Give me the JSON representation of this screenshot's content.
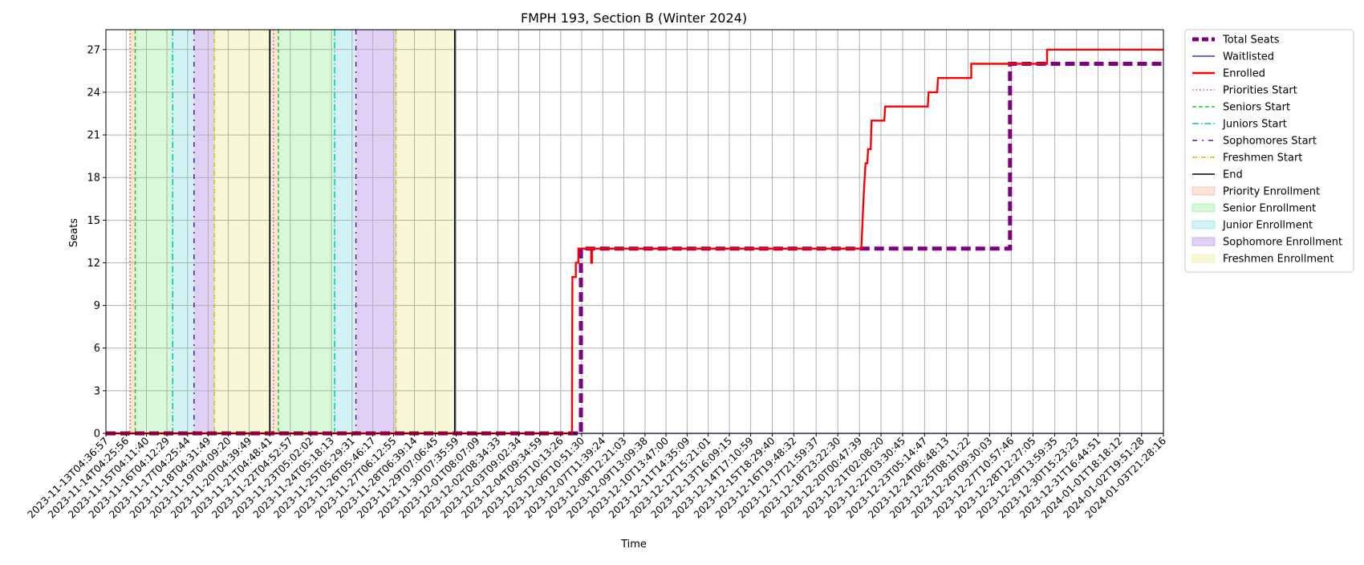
{
  "chart_data": {
    "type": "line",
    "title": "FMPH 193, Section B (Winter 2024)",
    "xlabel": "Time",
    "ylabel": "Seats",
    "ylim": [
      0,
      28.4
    ],
    "yticks": [
      0,
      3,
      6,
      9,
      12,
      15,
      18,
      21,
      24,
      27
    ],
    "x_range": [
      "2023-11-13T04:36:57",
      "2024-01-03T21:28:16"
    ],
    "xtick_labels": [
      "2023-11-13T04:36:57",
      "2023-11-14T04:25:56",
      "2023-11-15T04:11:40",
      "2023-11-16T04:12:29",
      "2023-11-17T04:25:44",
      "2023-11-18T04:31:49",
      "2023-11-19T04:09:20",
      "2023-11-20T04:39:49",
      "2023-11-21T04:48:41",
      "2023-11-22T04:52:57",
      "2023-11-23T05:02:02",
      "2023-11-24T05:18:13",
      "2023-11-25T05:29:31",
      "2023-11-26T05:46:17",
      "2023-11-27T06:12:55",
      "2023-11-28T06:39:14",
      "2023-11-29T07:06:45",
      "2023-11-30T07:35:59",
      "2023-12-01T08:07:09",
      "2023-12-02T08:34:33",
      "2023-12-03T09:02:34",
      "2023-12-04T09:34:59",
      "2023-12-05T10:13:26",
      "2023-12-06T10:51:30",
      "2023-12-07T11:39:24",
      "2023-12-08T12:21:03",
      "2023-12-09T13:09:38",
      "2023-12-10T13:47:00",
      "2023-12-11T14:35:09",
      "2023-12-12T15:21:01",
      "2023-12-13T16:09:15",
      "2023-12-14T17:10:59",
      "2023-12-15T18:29:40",
      "2023-12-16T19:48:32",
      "2023-12-17T21:59:37",
      "2023-12-18T23:22:30",
      "2023-12-20T00:47:39",
      "2023-12-21T02:08:20",
      "2023-12-22T03:30:45",
      "2023-12-23T05:14:47",
      "2023-12-24T06:48:13",
      "2023-12-25T08:11:22",
      "2023-12-26T09:30:03",
      "2023-12-27T10:57:46",
      "2023-12-28T12:27:05",
      "2023-12-29T13:59:35",
      "2023-12-30T15:23:23",
      "2023-12-31T16:44:51",
      "2024-01-01T18:18:12",
      "2024-01-02T19:51:28",
      "2024-01-03T21:28:16"
    ],
    "grid": true,
    "legend_position": "outside-right",
    "series": [
      {
        "name": "Total Seats",
        "color": "#800080",
        "style": "dashed-thick",
        "points": [
          [
            "2023-11-13T04:36:57",
            0
          ],
          [
            "2023-12-06T10:00:00",
            0
          ],
          [
            "2023-12-06T10:00:00",
            13
          ],
          [
            "2023-12-27T09:30:00",
            13
          ],
          [
            "2023-12-27T09:30:00",
            26
          ],
          [
            "2024-01-03T21:28:16",
            26
          ]
        ]
      },
      {
        "name": "Waitlisted",
        "color": "#0000ff",
        "style": "solid-thin",
        "points": [
          [
            "2023-11-13T04:36:57",
            0
          ],
          [
            "2024-01-03T21:28:16",
            0
          ]
        ]
      },
      {
        "name": "Enrolled",
        "color": "#ff0000",
        "style": "solid",
        "points": [
          [
            "2023-11-13T04:36:57",
            0
          ],
          [
            "2023-12-05T23:30:00",
            0
          ],
          [
            "2023-12-05T23:45:00",
            6
          ],
          [
            "2023-12-06T00:00:00",
            11
          ],
          [
            "2023-12-06T04:00:00",
            11
          ],
          [
            "2023-12-06T04:00:00",
            12
          ],
          [
            "2023-12-06T07:00:00",
            12
          ],
          [
            "2023-12-06T07:00:00",
            13
          ],
          [
            "2023-12-06T22:00:00",
            13
          ],
          [
            "2023-12-06T22:00:00",
            12
          ],
          [
            "2023-12-06T23:00:00",
            12
          ],
          [
            "2023-12-06T23:00:00",
            13
          ],
          [
            "2023-12-20T03:00:00",
            13
          ],
          [
            "2023-12-20T06:00:00",
            17
          ],
          [
            "2023-12-20T08:00:00",
            19
          ],
          [
            "2023-12-20T10:00:00",
            19
          ],
          [
            "2023-12-20T11:00:00",
            20
          ],
          [
            "2023-12-20T14:00:00",
            20
          ],
          [
            "2023-12-20T15:00:00",
            22
          ],
          [
            "2023-12-21T06:00:00",
            22
          ],
          [
            "2023-12-21T07:00:00",
            23
          ],
          [
            "2023-12-23T09:00:00",
            23
          ],
          [
            "2023-12-23T10:00:00",
            24
          ],
          [
            "2023-12-23T20:00:00",
            24
          ],
          [
            "2023-12-23T21:00:00",
            25
          ],
          [
            "2023-12-25T12:00:00",
            25
          ],
          [
            "2023-12-25T12:00:00",
            26
          ],
          [
            "2023-12-29T05:00:00",
            26
          ],
          [
            "2023-12-29T05:00:00",
            27
          ],
          [
            "2024-01-03T21:28:16",
            27
          ]
        ]
      }
    ],
    "vertical_markers": [
      {
        "name": "Priorities Start",
        "color": "#ff4500",
        "style": "dotted",
        "x": [
          "2023-11-14T09:00:00",
          "2023-11-21T09:00:00"
        ]
      },
      {
        "name": "Seniors Start",
        "color": "#22cc22",
        "style": "dashed",
        "x": [
          "2023-11-14T15:00:00",
          "2023-11-21T15:00:00"
        ]
      },
      {
        "name": "Juniors Start",
        "color": "#00bfbf",
        "style": "dashdot",
        "x": [
          "2023-11-16T11:00:00",
          "2023-11-24T09:00:00"
        ]
      },
      {
        "name": "Sophomores Start",
        "color": "#6a0dad",
        "style": "loose-dashdot",
        "x": [
          "2023-11-17T12:00:00",
          "2023-11-25T10:00:00"
        ]
      },
      {
        "name": "Freshmen Start",
        "color": "#d4c400",
        "style": "dashdot-thin",
        "x": [
          "2023-11-18T12:00:00",
          "2023-11-27T09:00:00"
        ]
      },
      {
        "name": "End",
        "color": "#000000",
        "style": "solid",
        "x": [
          "2023-11-21T05:00:00",
          "2023-11-30T06:00:00"
        ]
      }
    ],
    "shaded_periods": [
      {
        "name": "Priority Enrollment",
        "color": "#f4a582",
        "opacity": 0.3,
        "ranges": [
          [
            "2023-11-14T09:00:00",
            "2023-11-14T15:00:00"
          ],
          [
            "2023-11-21T09:00:00",
            "2023-11-21T15:00:00"
          ]
        ]
      },
      {
        "name": "Senior Enrollment",
        "color": "#90ee90",
        "opacity": 0.35,
        "ranges": [
          [
            "2023-11-14T15:00:00",
            "2023-11-16T11:00:00"
          ],
          [
            "2023-11-21T15:00:00",
            "2023-11-24T09:00:00"
          ]
        ]
      },
      {
        "name": "Junior Enrollment",
        "color": "#7fdde6",
        "opacity": 0.35,
        "ranges": [
          [
            "2023-11-16T11:00:00",
            "2023-11-17T12:00:00"
          ],
          [
            "2023-11-24T09:00:00",
            "2023-11-25T10:00:00"
          ]
        ]
      },
      {
        "name": "Sophomore Enrollment",
        "color": "#b28ae6",
        "opacity": 0.4,
        "ranges": [
          [
            "2023-11-17T12:00:00",
            "2023-11-18T12:00:00"
          ],
          [
            "2023-11-25T10:00:00",
            "2023-11-27T09:00:00"
          ]
        ]
      },
      {
        "name": "Freshmen Enrollment",
        "color": "#eeee99",
        "opacity": 0.4,
        "ranges": [
          [
            "2023-11-18T12:00:00",
            "2023-11-21T05:00:00"
          ],
          [
            "2023-11-27T09:00:00",
            "2023-11-30T06:00:00"
          ]
        ]
      }
    ],
    "legend_entries": [
      "Total Seats",
      "Waitlisted",
      "Enrolled",
      "Priorities Start",
      "Seniors Start",
      "Juniors Start",
      "Sophomores Start",
      "Freshmen Start",
      "End",
      "Priority Enrollment",
      "Senior Enrollment",
      "Junior Enrollment",
      "Sophomore Enrollment",
      "Freshmen Enrollment"
    ]
  }
}
